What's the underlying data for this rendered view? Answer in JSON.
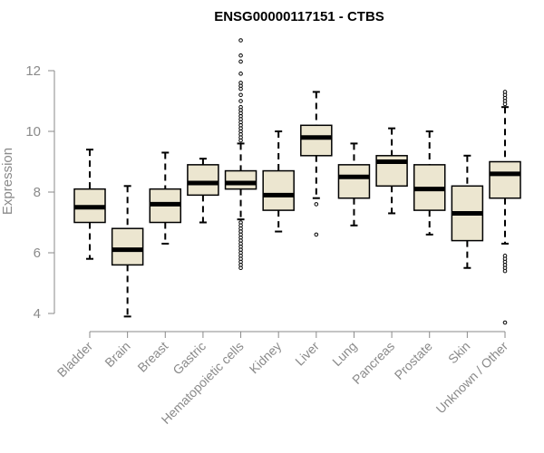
{
  "chart_data": {
    "type": "box",
    "title": "ENSG00000117151 - CTBS",
    "ylabel": "Expression",
    "xlabel": "",
    "ylim": [
      3.4,
      13.3
    ],
    "yticks": [
      4,
      6,
      8,
      10,
      12
    ],
    "grid": false,
    "colors": {
      "box_fill": "#ece6d0",
      "stroke": "#000000",
      "axis": "#8a8a8a"
    },
    "categories": [
      "Bladder",
      "Brain",
      "Breast",
      "Gastric",
      "Hematopoietic cells",
      "Kidney",
      "Liver",
      "Lung",
      "Pancreas",
      "Prostate",
      "Skin",
      "Unknown / Other"
    ],
    "boxes": [
      {
        "name": "Bladder",
        "whisker_low": 5.8,
        "q1": 7.0,
        "median": 7.5,
        "q3": 8.1,
        "whisker_high": 9.4,
        "outliers": []
      },
      {
        "name": "Brain",
        "whisker_low": 3.9,
        "q1": 5.6,
        "median": 6.1,
        "q3": 6.8,
        "whisker_high": 8.2,
        "outliers": []
      },
      {
        "name": "Breast",
        "whisker_low": 6.3,
        "q1": 7.0,
        "median": 7.6,
        "q3": 8.1,
        "whisker_high": 9.3,
        "outliers": []
      },
      {
        "name": "Gastric",
        "whisker_low": 7.0,
        "q1": 7.9,
        "median": 8.3,
        "q3": 8.9,
        "whisker_high": 9.1,
        "outliers": []
      },
      {
        "name": "Hematopoietic cells",
        "whisker_low": 7.1,
        "q1": 8.1,
        "median": 8.3,
        "q3": 8.7,
        "whisker_high": 9.6,
        "outliers": [
          13.0,
          12.5,
          12.3,
          11.9,
          11.6,
          11.5,
          11.4,
          11.2,
          11.0,
          10.8,
          10.7,
          10.6,
          10.5,
          10.4,
          10.3,
          10.2,
          10.1,
          10.0,
          9.9,
          9.8,
          9.7,
          7.0,
          6.9,
          6.8,
          6.7,
          6.6,
          6.5,
          6.4,
          6.3,
          6.2,
          6.1,
          6.0,
          5.9,
          5.8,
          5.7,
          5.6,
          5.5
        ]
      },
      {
        "name": "Kidney",
        "whisker_low": 6.7,
        "q1": 7.4,
        "median": 7.9,
        "q3": 8.7,
        "whisker_high": 10.0,
        "outliers": []
      },
      {
        "name": "Liver",
        "whisker_low": 7.8,
        "q1": 9.2,
        "median": 9.8,
        "q3": 10.2,
        "whisker_high": 11.3,
        "outliers": [
          7.6,
          6.6
        ]
      },
      {
        "name": "Lung",
        "whisker_low": 6.9,
        "q1": 7.8,
        "median": 8.5,
        "q3": 8.9,
        "whisker_high": 9.6,
        "outliers": []
      },
      {
        "name": "Pancreas",
        "whisker_low": 7.3,
        "q1": 8.2,
        "median": 9.0,
        "q3": 9.2,
        "whisker_high": 10.1,
        "outliers": []
      },
      {
        "name": "Prostate",
        "whisker_low": 6.6,
        "q1": 7.4,
        "median": 8.1,
        "q3": 8.9,
        "whisker_high": 10.0,
        "outliers": []
      },
      {
        "name": "Skin",
        "whisker_low": 5.5,
        "q1": 6.4,
        "median": 7.3,
        "q3": 8.2,
        "whisker_high": 9.2,
        "outliers": []
      },
      {
        "name": "Unknown / Other",
        "whisker_low": 6.3,
        "q1": 7.8,
        "median": 8.6,
        "q3": 9.0,
        "whisker_high": 10.8,
        "outliers": [
          11.3,
          11.2,
          11.1,
          11.0,
          10.9,
          5.9,
          5.8,
          5.7,
          5.6,
          5.5,
          5.4,
          3.7
        ]
      }
    ]
  }
}
